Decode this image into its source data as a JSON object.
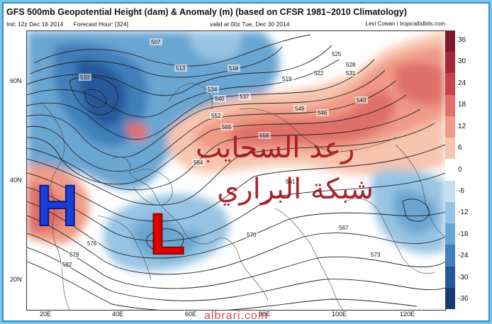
{
  "header": {
    "title": "GFS 500mb Geopotential Height (dam) & Anomaly (m) (based on CFSR 1981–2010 Climatology)",
    "init": "Init: 12z Dec 16 2014",
    "forecast": "Forecast Hour: [324]",
    "valid": "valid at 00z Tue, Dec 30 2014",
    "credit": "Levi Cowan | tropicaltidbits.com"
  },
  "axes": {
    "lat_labels": [
      "60N",
      "40N",
      "20N"
    ],
    "lon_labels": [
      "20E",
      "40E",
      "60E",
      "80E",
      "100E",
      "120E"
    ]
  },
  "colorbar": {
    "labels": [
      "36",
      "30",
      "24",
      "18",
      "12",
      "6",
      "0",
      "-6",
      "-12",
      "-18",
      "-24",
      "-30",
      "-36"
    ],
    "colors": [
      "#7a1a2a",
      "#a3293a",
      "#c8434c",
      "#df6f67",
      "#ef9a86",
      "#f7c4ae",
      "#ffffff",
      "#c7def0",
      "#98c4e3",
      "#6aa6d2",
      "#3f7fba",
      "#25599b",
      "#173a72"
    ]
  },
  "map": {
    "height_contour_labels": [
      "507",
      "510",
      "513",
      "516",
      "519",
      "522",
      "525",
      "528",
      "531",
      "534",
      "537",
      "540",
      "543",
      "546",
      "549",
      "552",
      "555",
      "558",
      "561",
      "564",
      "567",
      "570",
      "573",
      "576",
      "579",
      "582"
    ],
    "symbols": {
      "high": "H",
      "low": "L"
    },
    "arabic_line1": "رعد السحايب",
    "arabic_line2": "شبكة البراري"
  },
  "footer": {
    "watermark": "albrari.com"
  }
}
